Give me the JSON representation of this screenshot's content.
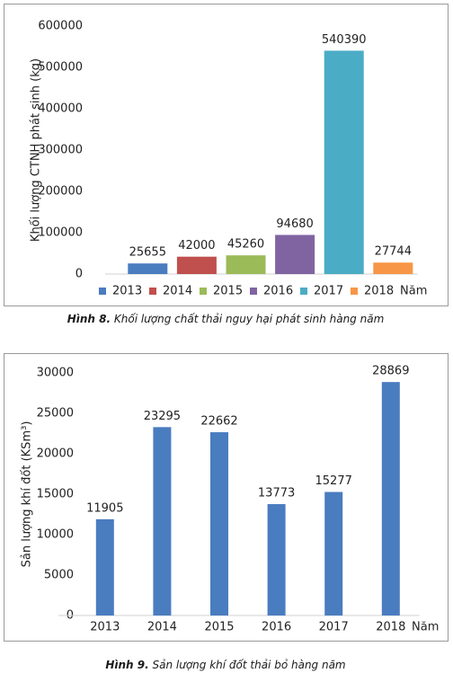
{
  "chart_data": [
    {
      "type": "bar",
      "y_label": "Khối lượng CTNH phát sinh (kg)",
      "x_label": "Năm",
      "categories": [
        "2013",
        "2014",
        "2015",
        "2016",
        "2017",
        "2018"
      ],
      "values": [
        25655,
        42000,
        45260,
        94680,
        540390,
        27744
      ],
      "colors": [
        "#4a7cc0",
        "#c0504d",
        "#9bbb59",
        "#8064a2",
        "#4bacc6",
        "#f79646"
      ],
      "ylim": [
        0,
        600000
      ],
      "yticks": [
        0,
        100000,
        200000,
        300000,
        400000,
        500000,
        600000
      ],
      "legend": "bottom",
      "caption_label": "Hình 8.",
      "caption_text": "Khối lượng chất thải nguy hại phát sinh hàng năm"
    },
    {
      "type": "bar",
      "y_label": "Sản lượng khí đốt (KSm³)",
      "x_label": "Năm",
      "categories": [
        "2013",
        "2014",
        "2015",
        "2016",
        "2017",
        "2018"
      ],
      "values": [
        11905,
        23295,
        22662,
        13773,
        15277,
        28869
      ],
      "color": "#4a7cc0",
      "ylim": [
        0,
        30000
      ],
      "yticks": [
        0,
        5000,
        10000,
        15000,
        20000,
        25000,
        30000
      ],
      "caption_label": "Hình 9.",
      "caption_text": "Sản lượng khí đốt thải bỏ hàng năm"
    }
  ]
}
